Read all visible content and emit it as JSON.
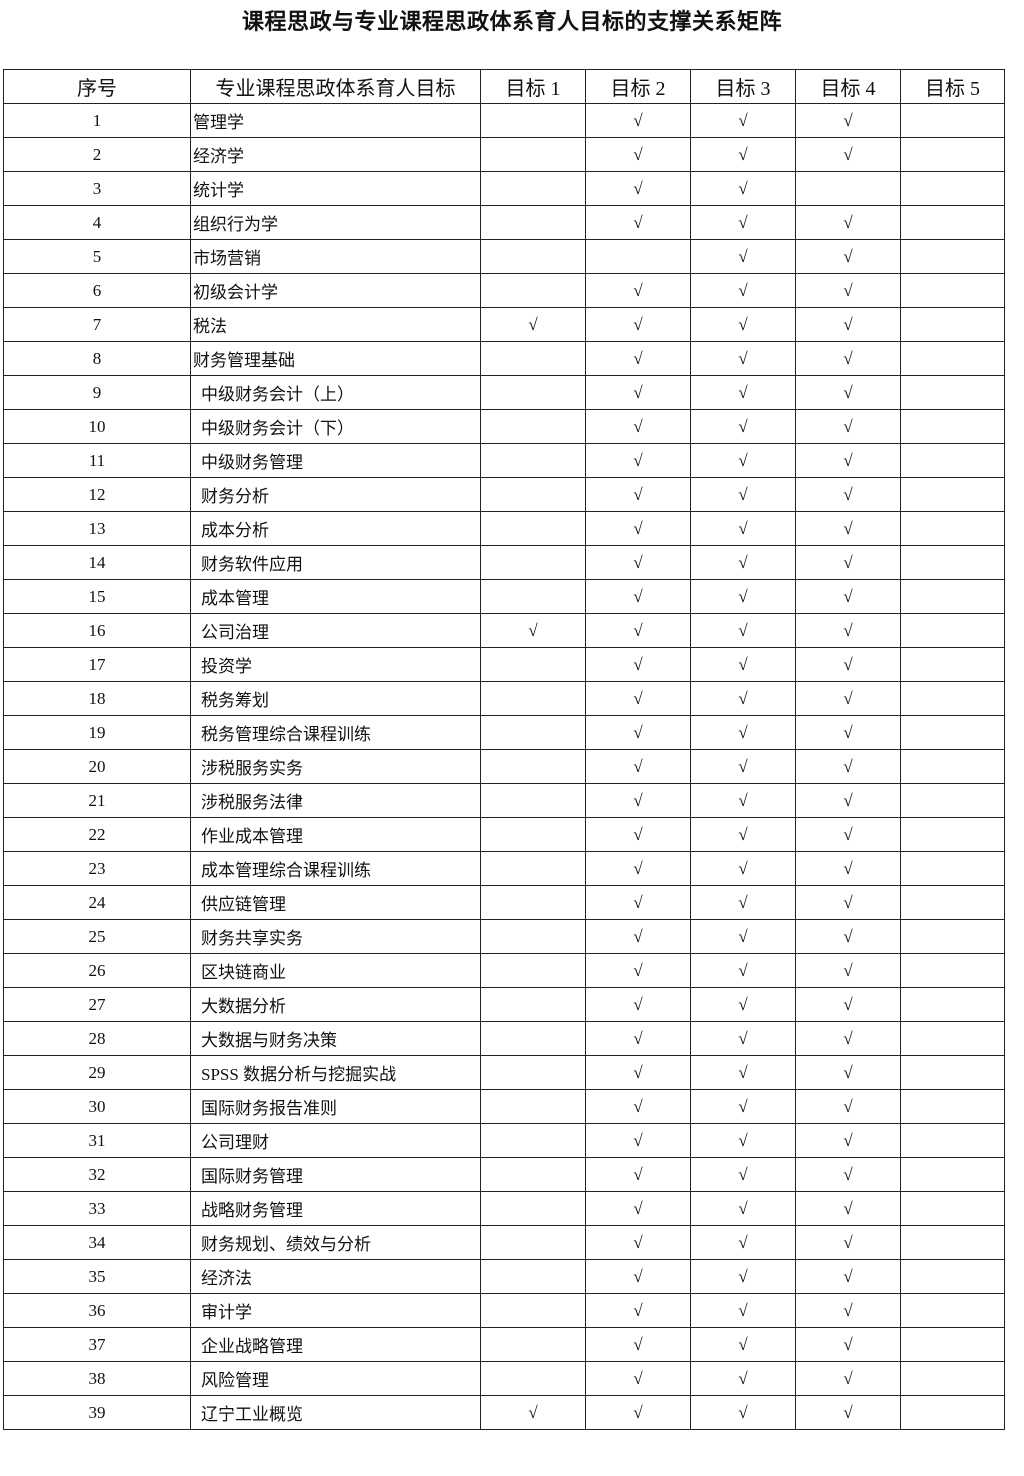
{
  "title": "课程思政与专业课程思政体系育人目标的支撑关系矩阵",
  "headers": [
    "序号",
    "专业课程思政体系育人目标",
    "目标 1",
    "目标 2",
    "目标 3",
    "目标 4",
    "目标 5"
  ],
  "check_symbol": "√",
  "rows": [
    {
      "no": "1",
      "course": "管理学",
      "goals": [
        false,
        true,
        true,
        true,
        false
      ]
    },
    {
      "no": "2",
      "course": "经济学",
      "goals": [
        false,
        true,
        true,
        true,
        false
      ]
    },
    {
      "no": "3",
      "course": "统计学",
      "goals": [
        false,
        true,
        true,
        false,
        false
      ]
    },
    {
      "no": "4",
      "course": "组织行为学",
      "goals": [
        false,
        true,
        true,
        true,
        false
      ]
    },
    {
      "no": "5",
      "course": "市场营销",
      "goals": [
        false,
        false,
        true,
        true,
        false
      ]
    },
    {
      "no": "6",
      "course": "初级会计学",
      "goals": [
        false,
        true,
        true,
        true,
        false
      ]
    },
    {
      "no": "7",
      "course": "税法",
      "goals": [
        true,
        true,
        true,
        true,
        false
      ]
    },
    {
      "no": "8",
      "course": "财务管理基础",
      "goals": [
        false,
        true,
        true,
        true,
        false
      ]
    },
    {
      "no": "9",
      "course": "中级财务会计（上）",
      "goals": [
        false,
        true,
        true,
        true,
        false
      ]
    },
    {
      "no": "10",
      "course": "中级财务会计（下）",
      "goals": [
        false,
        true,
        true,
        true,
        false
      ]
    },
    {
      "no": "11",
      "course": "中级财务管理",
      "goals": [
        false,
        true,
        true,
        true,
        false
      ]
    },
    {
      "no": "12",
      "course": "财务分析",
      "goals": [
        false,
        true,
        true,
        true,
        false
      ]
    },
    {
      "no": "13",
      "course": "成本分析",
      "goals": [
        false,
        true,
        true,
        true,
        false
      ]
    },
    {
      "no": "14",
      "course": "财务软件应用",
      "goals": [
        false,
        true,
        true,
        true,
        false
      ]
    },
    {
      "no": "15",
      "course": "成本管理",
      "goals": [
        false,
        true,
        true,
        true,
        false
      ]
    },
    {
      "no": "16",
      "course": "公司治理",
      "goals": [
        true,
        true,
        true,
        true,
        false
      ]
    },
    {
      "no": "17",
      "course": "投资学",
      "goals": [
        false,
        true,
        true,
        true,
        false
      ]
    },
    {
      "no": "18",
      "course": "税务筹划",
      "goals": [
        false,
        true,
        true,
        true,
        false
      ]
    },
    {
      "no": "19",
      "course": "税务管理综合课程训练",
      "goals": [
        false,
        true,
        true,
        true,
        false
      ]
    },
    {
      "no": "20",
      "course": "涉税服务实务",
      "goals": [
        false,
        true,
        true,
        true,
        false
      ]
    },
    {
      "no": "21",
      "course": "涉税服务法律",
      "goals": [
        false,
        true,
        true,
        true,
        false
      ]
    },
    {
      "no": "22",
      "course": "作业成本管理",
      "goals": [
        false,
        true,
        true,
        true,
        false
      ]
    },
    {
      "no": "23",
      "course": "成本管理综合课程训练",
      "goals": [
        false,
        true,
        true,
        true,
        false
      ]
    },
    {
      "no": "24",
      "course": "供应链管理",
      "goals": [
        false,
        true,
        true,
        true,
        false
      ]
    },
    {
      "no": "25",
      "course": "财务共享实务",
      "goals": [
        false,
        true,
        true,
        true,
        false
      ]
    },
    {
      "no": "26",
      "course": "区块链商业",
      "goals": [
        false,
        true,
        true,
        true,
        false
      ]
    },
    {
      "no": "27",
      "course": "大数据分析",
      "goals": [
        false,
        true,
        true,
        true,
        false
      ]
    },
    {
      "no": "28",
      "course": "大数据与财务决策",
      "goals": [
        false,
        true,
        true,
        true,
        false
      ]
    },
    {
      "no": "29",
      "course": "SPSS 数据分析与挖掘实战",
      "goals": [
        false,
        true,
        true,
        true,
        false
      ]
    },
    {
      "no": "30",
      "course": "国际财务报告准则",
      "goals": [
        false,
        true,
        true,
        true,
        false
      ]
    },
    {
      "no": "31",
      "course": "公司理财",
      "goals": [
        false,
        true,
        true,
        true,
        false
      ]
    },
    {
      "no": "32",
      "course": "国际财务管理",
      "goals": [
        false,
        true,
        true,
        true,
        false
      ]
    },
    {
      "no": "33",
      "course": "战略财务管理",
      "goals": [
        false,
        true,
        true,
        true,
        false
      ]
    },
    {
      "no": "34",
      "course": "财务规划、绩效与分析",
      "goals": [
        false,
        true,
        true,
        true,
        false
      ]
    },
    {
      "no": "35",
      "course": "经济法",
      "goals": [
        false,
        true,
        true,
        true,
        false
      ]
    },
    {
      "no": "36",
      "course": "审计学",
      "goals": [
        false,
        true,
        true,
        true,
        false
      ]
    },
    {
      "no": "37",
      "course": "企业战略管理",
      "goals": [
        false,
        true,
        true,
        true,
        false
      ]
    },
    {
      "no": "38",
      "course": "风险管理",
      "goals": [
        false,
        true,
        true,
        true,
        false
      ]
    },
    {
      "no": "39",
      "course": "辽宁工业概览",
      "goals": [
        true,
        true,
        true,
        true,
        false
      ]
    }
  ]
}
